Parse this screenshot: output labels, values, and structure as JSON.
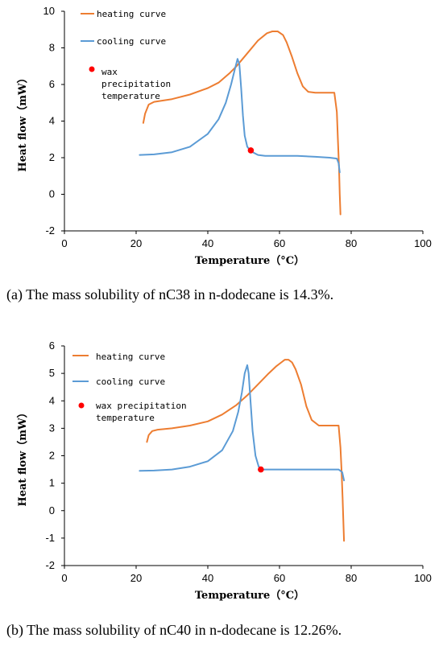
{
  "chart_data": [
    {
      "type": "line",
      "title": "",
      "xlabel": "Temperature（°C）",
      "ylabel": "Heat flow（mW）",
      "xlim": [
        0,
        100
      ],
      "ylim": [
        -2,
        10
      ],
      "xticks": [
        0,
        20,
        40,
        60,
        80,
        100
      ],
      "yticks": [
        -2,
        0,
        2,
        4,
        6,
        8,
        10
      ],
      "grid": false,
      "legend_position": "top-left",
      "legend": [
        "heating curve",
        "cooling curve",
        "wax precipitation temperature"
      ],
      "colors": {
        "heating": "#ED7D31",
        "cooling": "#5B9BD5",
        "wax_point": "#FF0000"
      },
      "series": [
        {
          "name": "heating curve",
          "color": "#ED7D31",
          "x": [
            22,
            22.5,
            23.5,
            25,
            30,
            35,
            40,
            43,
            46,
            48,
            51,
            54,
            56.5,
            58,
            59.5,
            61,
            62,
            63.5,
            65,
            66.5,
            68,
            70,
            72,
            74,
            75.3,
            76,
            76.3,
            76.6,
            76.8,
            77
          ],
          "y": [
            3.9,
            4.4,
            4.9,
            5.05,
            5.2,
            5.45,
            5.8,
            6.1,
            6.6,
            7.0,
            7.7,
            8.4,
            8.8,
            8.9,
            8.9,
            8.7,
            8.3,
            7.5,
            6.6,
            5.9,
            5.6,
            5.55,
            5.55,
            5.55,
            5.55,
            4.5,
            3.0,
            1.5,
            0.0,
            -1.1
          ]
        },
        {
          "name": "cooling curve",
          "color": "#5B9BD5",
          "x": [
            21,
            25,
            30,
            35,
            40,
            43,
            45,
            46.5,
            47.5,
            48.3,
            48.8,
            49.3,
            49.8,
            50.3,
            51,
            52,
            54,
            56,
            60,
            65,
            70,
            74,
            76,
            76.5,
            76.8
          ],
          "y": [
            2.15,
            2.18,
            2.3,
            2.6,
            3.3,
            4.1,
            5.0,
            6.0,
            6.8,
            7.4,
            7.1,
            5.8,
            4.3,
            3.2,
            2.6,
            2.35,
            2.15,
            2.1,
            2.1,
            2.1,
            2.05,
            2.0,
            1.95,
            1.7,
            1.2
          ]
        }
      ],
      "wax_point": {
        "label": "wax precipitation temperature",
        "x": 52,
        "y": 2.4
      },
      "caption_label": "(a)",
      "caption_text": " The mass solubility of nC38 in n-dodecane is 14.3%."
    },
    {
      "type": "line",
      "title": "",
      "xlabel": "Temperature（°C）",
      "ylabel": "Heat flow（mW）",
      "xlim": [
        0,
        100
      ],
      "ylim": [
        -2,
        6
      ],
      "xticks": [
        0,
        20,
        40,
        60,
        80,
        100
      ],
      "yticks": [
        -2,
        -1,
        0,
        1,
        2,
        3,
        4,
        5,
        6
      ],
      "grid": false,
      "legend_position": "top-left",
      "legend": [
        "heating curve",
        "cooling curve",
        "wax precipitation temperature"
      ],
      "colors": {
        "heating": "#ED7D31",
        "cooling": "#5B9BD5",
        "wax_point": "#FF0000"
      },
      "series": [
        {
          "name": "heating curve",
          "color": "#ED7D31",
          "x": [
            23,
            23.5,
            24.5,
            26,
            30,
            35,
            40,
            44,
            48,
            51,
            54,
            57,
            59,
            60.5,
            61.5,
            62.5,
            63.5,
            64.5,
            66,
            67.5,
            69,
            71,
            73,
            75,
            76.5,
            77,
            77.3,
            77.6,
            77.8,
            78
          ],
          "y": [
            2.5,
            2.75,
            2.9,
            2.95,
            3.0,
            3.1,
            3.25,
            3.5,
            3.85,
            4.2,
            4.6,
            5.0,
            5.25,
            5.4,
            5.5,
            5.5,
            5.4,
            5.15,
            4.6,
            3.8,
            3.3,
            3.1,
            3.1,
            3.1,
            3.1,
            2.3,
            1.5,
            0.5,
            -0.3,
            -1.1
          ]
        },
        {
          "name": "cooling curve",
          "color": "#5B9BD5",
          "x": [
            21,
            25,
            30,
            35,
            40,
            44,
            47,
            48.5,
            49.5,
            50.3,
            51,
            51.4,
            51.9,
            52.5,
            53.3,
            54.2,
            55.5,
            58,
            62,
            66,
            70,
            74,
            76.5,
            77.5,
            78
          ],
          "y": [
            1.45,
            1.46,
            1.5,
            1.6,
            1.8,
            2.2,
            2.9,
            3.6,
            4.3,
            5.0,
            5.3,
            5.0,
            4.0,
            2.9,
            2.0,
            1.6,
            1.5,
            1.5,
            1.5,
            1.5,
            1.5,
            1.5,
            1.5,
            1.4,
            1.1
          ]
        }
      ],
      "wax_point": {
        "label": "wax precipitation temperature",
        "x": 54.8,
        "y": 1.5
      },
      "caption_label": "(b)",
      "caption_text": " The mass solubility of nC40 in n-dodecane is 12.26%."
    }
  ],
  "legend_text": {
    "heating": "heating curve",
    "cooling": "cooling curve",
    "wax_line1": "wax",
    "wax_line2": "precipitation",
    "wax_line3": "temperature",
    "wax_b_line1": "wax precipitation",
    "wax_b_line2": "temperature"
  }
}
